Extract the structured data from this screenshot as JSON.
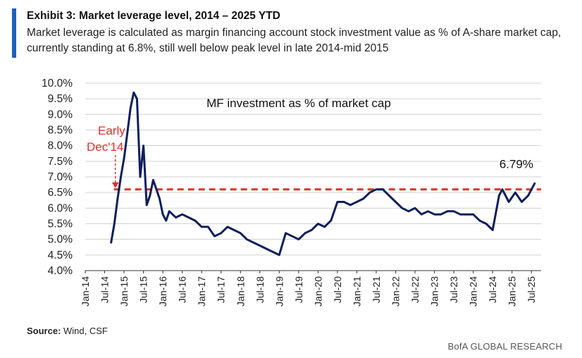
{
  "header": {
    "title": "Exhibit 3: Market leverage level, 2014 – 2025 YTD",
    "subtitle": "Market leverage is calculated as margin financing account stock investment value as % of A-share market cap, currently standing at 6.8%, still well below peak level in late 2014-mid 2015"
  },
  "colors": {
    "accent": "#1f5fbf",
    "line": "#0d1f5c",
    "reference": "#d9342b",
    "grid": "#d0d0d0"
  },
  "chart_data": {
    "type": "line",
    "title": "MF investment as % of market cap",
    "xlabel": "",
    "ylabel": "",
    "ylim": [
      4.0,
      10.0
    ],
    "yticks": [
      "4.0%",
      "4.5%",
      "5.0%",
      "5.5%",
      "6.0%",
      "6.5%",
      "7.0%",
      "7.5%",
      "8.0%",
      "8.5%",
      "9.0%",
      "9.5%",
      "10.0%"
    ],
    "xticks": [
      "Jan-14",
      "Jul-14",
      "Jan-15",
      "Jul-15",
      "Jan-16",
      "Jul-16",
      "Jan-17",
      "Jul-17",
      "Jan-18",
      "Jul-18",
      "Jan-19",
      "Jul-19",
      "Jan-20",
      "Jul-20",
      "Jan-21",
      "Jul-21",
      "Jan-22",
      "Jul-22",
      "Jan-23",
      "Jul-23",
      "Jan-24",
      "Jul-24",
      "Jan-25",
      "Jul-25"
    ],
    "grid": true,
    "series": [
      {
        "name": "MF investment as % of market cap",
        "x": [
          "2014-09",
          "2014-10",
          "2014-11",
          "2014-12",
          "2015-01",
          "2015-02",
          "2015-03",
          "2015-04",
          "2015-05",
          "2015-06",
          "2015-07",
          "2015-08",
          "2015-09",
          "2015-10",
          "2015-11",
          "2015-12",
          "2016-01",
          "2016-02",
          "2016-03",
          "2016-05",
          "2016-07",
          "2016-09",
          "2016-11",
          "2017-01",
          "2017-03",
          "2017-05",
          "2017-07",
          "2017-09",
          "2017-11",
          "2018-01",
          "2018-03",
          "2018-05",
          "2018-07",
          "2018-09",
          "2018-11",
          "2019-01",
          "2019-03",
          "2019-05",
          "2019-07",
          "2019-09",
          "2019-11",
          "2020-01",
          "2020-03",
          "2020-05",
          "2020-07",
          "2020-09",
          "2020-11",
          "2021-01",
          "2021-03",
          "2021-05",
          "2021-07",
          "2021-09",
          "2021-11",
          "2022-01",
          "2022-03",
          "2022-05",
          "2022-07",
          "2022-09",
          "2022-11",
          "2023-01",
          "2023-03",
          "2023-05",
          "2023-07",
          "2023-09",
          "2023-11",
          "2024-01",
          "2024-03",
          "2024-05",
          "2024-07",
          "2024-09",
          "2024-10",
          "2024-12",
          "2025-02",
          "2025-04",
          "2025-06",
          "2025-08"
        ],
        "values": [
          4.9,
          5.5,
          6.3,
          7.0,
          7.6,
          8.4,
          9.2,
          9.7,
          9.5,
          7.0,
          8.0,
          6.1,
          6.4,
          6.9,
          6.6,
          6.3,
          5.8,
          5.6,
          5.9,
          5.7,
          5.8,
          5.7,
          5.6,
          5.4,
          5.4,
          5.1,
          5.2,
          5.4,
          5.3,
          5.2,
          5.0,
          4.9,
          4.8,
          4.7,
          4.6,
          4.5,
          5.2,
          5.1,
          5.0,
          5.2,
          5.3,
          5.5,
          5.4,
          5.6,
          6.2,
          6.2,
          6.1,
          6.2,
          6.3,
          6.5,
          6.6,
          6.6,
          6.4,
          6.2,
          6.0,
          5.9,
          6.0,
          5.8,
          5.9,
          5.8,
          5.8,
          5.9,
          5.9,
          5.8,
          5.8,
          5.8,
          5.6,
          5.5,
          5.3,
          6.4,
          6.6,
          6.2,
          6.5,
          6.2,
          6.4,
          6.79
        ]
      }
    ],
    "reference_line": {
      "value": 6.6,
      "label": "Early Dec'14"
    },
    "end_label": "6.79%"
  },
  "source": {
    "label": "Source:",
    "text": " Wind, CSF"
  },
  "footer": {
    "brand": "BofA GLOBAL RESEARCH"
  }
}
